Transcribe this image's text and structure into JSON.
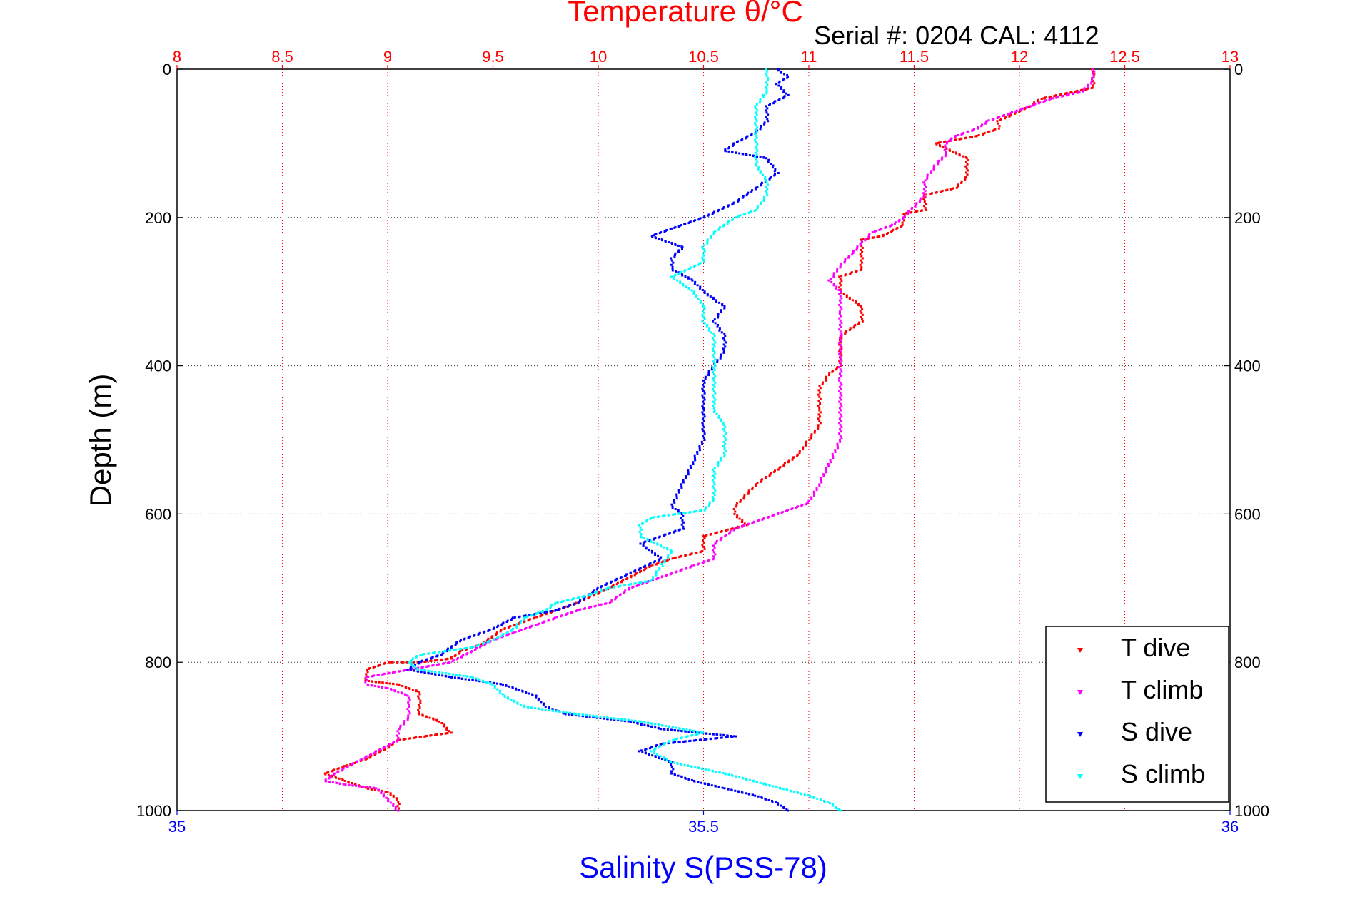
{
  "chart_data": {
    "type": "scatter",
    "title": "Temperature θ/°C",
    "subtitle": "Serial #: 0204  CAL: 4112",
    "xlabel_top": "Temperature θ/°C",
    "xlabel_bottom": "Salinity S(PSS-78)",
    "ylabel": "Depth (m)",
    "top_axis": {
      "range": [
        8,
        13
      ],
      "ticks": [
        "8",
        "8.5",
        "9",
        "9.5",
        "10",
        "10.5",
        "11",
        "11.5",
        "12",
        "12.5",
        "13"
      ],
      "color": "#ff0000"
    },
    "bottom_axis": {
      "range": [
        35,
        36
      ],
      "ticks": [
        "35",
        "35.5",
        "36"
      ],
      "color": "#0000ff"
    },
    "y_axis": {
      "range": [
        0,
        1000
      ],
      "reversed": true,
      "ticks": [
        "0",
        "200",
        "400",
        "600",
        "800",
        "1000"
      ]
    },
    "grid": true,
    "legend_position": "bottom-right",
    "series": [
      {
        "name": "T dive",
        "color": "#ff0000",
        "axis": "top",
        "points": [
          [
            12.35,
            0
          ],
          [
            12.35,
            10
          ],
          [
            12.35,
            25
          ],
          [
            12.1,
            40
          ],
          [
            12.05,
            50
          ],
          [
            11.9,
            70
          ],
          [
            11.9,
            80
          ],
          [
            11.8,
            90
          ],
          [
            11.6,
            100
          ],
          [
            11.75,
            120
          ],
          [
            11.75,
            145
          ],
          [
            11.7,
            160
          ],
          [
            11.55,
            170
          ],
          [
            11.55,
            190
          ],
          [
            11.45,
            195
          ],
          [
            11.45,
            210
          ],
          [
            11.35,
            225
          ],
          [
            11.25,
            230
          ],
          [
            11.25,
            255
          ],
          [
            11.25,
            270
          ],
          [
            11.15,
            280
          ],
          [
            11.15,
            300
          ],
          [
            11.25,
            320
          ],
          [
            11.25,
            340
          ],
          [
            11.15,
            360
          ],
          [
            11.15,
            380
          ],
          [
            11.15,
            400
          ],
          [
            11.1,
            410
          ],
          [
            11.05,
            430
          ],
          [
            11.05,
            460
          ],
          [
            11.05,
            480
          ],
          [
            11.0,
            500
          ],
          [
            10.95,
            520
          ],
          [
            10.85,
            540
          ],
          [
            10.75,
            560
          ],
          [
            10.7,
            575
          ],
          [
            10.65,
            590
          ],
          [
            10.65,
            600
          ],
          [
            10.7,
            615
          ],
          [
            10.5,
            630
          ],
          [
            10.5,
            650
          ],
          [
            10.35,
            660
          ],
          [
            10.25,
            670
          ],
          [
            10.15,
            685
          ],
          [
            10.05,
            700
          ],
          [
            9.9,
            720
          ],
          [
            9.8,
            730
          ],
          [
            9.7,
            740
          ],
          [
            9.55,
            755
          ],
          [
            9.45,
            775
          ],
          [
            9.35,
            785
          ],
          [
            9.3,
            795
          ],
          [
            9.15,
            800
          ],
          [
            9.0,
            800
          ],
          [
            8.9,
            810
          ],
          [
            8.9,
            825
          ],
          [
            9.05,
            830
          ],
          [
            9.15,
            840
          ],
          [
            9.15,
            855
          ],
          [
            9.15,
            870
          ],
          [
            9.25,
            880
          ],
          [
            9.3,
            895
          ],
          [
            9.05,
            905
          ],
          [
            9.0,
            915
          ],
          [
            8.9,
            930
          ],
          [
            8.8,
            940
          ],
          [
            8.7,
            950
          ],
          [
            8.8,
            960
          ],
          [
            8.9,
            970
          ],
          [
            9.0,
            975
          ],
          [
            9.05,
            985
          ],
          [
            9.05,
            1000
          ]
        ]
      },
      {
        "name": "T climb",
        "color": "#ff00ff",
        "axis": "top",
        "points": [
          [
            12.35,
            0
          ],
          [
            12.35,
            15
          ],
          [
            12.3,
            30
          ],
          [
            12.15,
            40
          ],
          [
            12.05,
            50
          ],
          [
            11.95,
            60
          ],
          [
            11.85,
            70
          ],
          [
            11.8,
            80
          ],
          [
            11.7,
            90
          ],
          [
            11.65,
            100
          ],
          [
            11.65,
            115
          ],
          [
            11.6,
            130
          ],
          [
            11.55,
            150
          ],
          [
            11.55,
            170
          ],
          [
            11.5,
            185
          ],
          [
            11.45,
            200
          ],
          [
            11.4,
            210
          ],
          [
            11.3,
            220
          ],
          [
            11.25,
            235
          ],
          [
            11.2,
            250
          ],
          [
            11.15,
            265
          ],
          [
            11.1,
            285
          ],
          [
            11.15,
            300
          ],
          [
            11.15,
            330
          ],
          [
            11.15,
            360
          ],
          [
            11.15,
            390
          ],
          [
            11.15,
            420
          ],
          [
            11.15,
            460
          ],
          [
            11.15,
            500
          ],
          [
            11.1,
            530
          ],
          [
            11.05,
            560
          ],
          [
            11.0,
            585
          ],
          [
            10.85,
            600
          ],
          [
            10.65,
            620
          ],
          [
            10.55,
            640
          ],
          [
            10.55,
            660
          ],
          [
            10.45,
            670
          ],
          [
            10.3,
            685
          ],
          [
            10.15,
            700
          ],
          [
            10.05,
            720
          ],
          [
            9.9,
            730
          ],
          [
            9.8,
            740
          ],
          [
            9.7,
            750
          ],
          [
            9.6,
            760
          ],
          [
            9.5,
            770
          ],
          [
            9.4,
            785
          ],
          [
            9.3,
            800
          ],
          [
            9.1,
            810
          ],
          [
            8.9,
            820
          ],
          [
            8.9,
            830
          ],
          [
            9.0,
            835
          ],
          [
            9.1,
            845
          ],
          [
            9.1,
            860
          ],
          [
            9.1,
            875
          ],
          [
            9.05,
            890
          ],
          [
            9.05,
            905
          ],
          [
            8.95,
            920
          ],
          [
            8.85,
            935
          ],
          [
            8.75,
            950
          ],
          [
            8.7,
            960
          ],
          [
            8.8,
            965
          ],
          [
            8.95,
            970
          ],
          [
            9.0,
            985
          ],
          [
            9.05,
            1000
          ]
        ]
      },
      {
        "name": "S dive",
        "color": "#0000ff",
        "axis": "bottom",
        "points": [
          [
            35.57,
            0
          ],
          [
            35.58,
            10
          ],
          [
            35.57,
            20
          ],
          [
            35.58,
            35
          ],
          [
            35.56,
            50
          ],
          [
            35.56,
            70
          ],
          [
            35.55,
            85
          ],
          [
            35.53,
            100
          ],
          [
            35.52,
            110
          ],
          [
            35.56,
            120
          ],
          [
            35.57,
            140
          ],
          [
            35.55,
            160
          ],
          [
            35.53,
            180
          ],
          [
            35.5,
            200
          ],
          [
            35.47,
            215
          ],
          [
            35.45,
            225
          ],
          [
            35.48,
            240
          ],
          [
            35.47,
            255
          ],
          [
            35.47,
            270
          ],
          [
            35.49,
            285
          ],
          [
            35.5,
            300
          ],
          [
            35.52,
            320
          ],
          [
            35.51,
            340
          ],
          [
            35.52,
            360
          ],
          [
            35.52,
            380
          ],
          [
            35.51,
            400
          ],
          [
            35.5,
            420
          ],
          [
            35.5,
            440
          ],
          [
            35.5,
            460
          ],
          [
            35.5,
            480
          ],
          [
            35.5,
            500
          ],
          [
            35.49,
            530
          ],
          [
            35.48,
            560
          ],
          [
            35.47,
            590
          ],
          [
            35.48,
            600
          ],
          [
            35.48,
            620
          ],
          [
            35.44,
            640
          ],
          [
            35.46,
            660
          ],
          [
            35.43,
            680
          ],
          [
            35.4,
            700
          ],
          [
            35.38,
            720
          ],
          [
            35.36,
            730
          ],
          [
            35.32,
            740
          ],
          [
            35.3,
            755
          ],
          [
            35.27,
            770
          ],
          [
            35.25,
            790
          ],
          [
            35.23,
            800
          ],
          [
            35.22,
            810
          ],
          [
            35.26,
            820
          ],
          [
            35.31,
            830
          ],
          [
            35.34,
            845
          ],
          [
            35.35,
            860
          ],
          [
            35.37,
            870
          ],
          [
            35.43,
            880
          ],
          [
            35.46,
            890
          ],
          [
            35.53,
            900
          ],
          [
            35.46,
            910
          ],
          [
            35.44,
            920
          ],
          [
            35.47,
            935
          ],
          [
            35.47,
            950
          ],
          [
            35.49,
            960
          ],
          [
            35.52,
            970
          ],
          [
            35.55,
            980
          ],
          [
            35.57,
            990
          ],
          [
            35.58,
            1000
          ]
        ]
      },
      {
        "name": "S climb",
        "color": "#00ffff",
        "axis": "bottom",
        "points": [
          [
            35.56,
            0
          ],
          [
            35.56,
            15
          ],
          [
            35.56,
            30
          ],
          [
            35.55,
            50
          ],
          [
            35.55,
            70
          ],
          [
            35.55,
            90
          ],
          [
            35.55,
            110
          ],
          [
            35.55,
            130
          ],
          [
            35.56,
            150
          ],
          [
            35.56,
            170
          ],
          [
            35.55,
            190
          ],
          [
            35.53,
            200
          ],
          [
            35.51,
            220
          ],
          [
            35.5,
            240
          ],
          [
            35.5,
            260
          ],
          [
            35.47,
            280
          ],
          [
            35.49,
            300
          ],
          [
            35.5,
            320
          ],
          [
            35.5,
            340
          ],
          [
            35.51,
            360
          ],
          [
            35.51,
            380
          ],
          [
            35.51,
            400
          ],
          [
            35.51,
            420
          ],
          [
            35.51,
            440
          ],
          [
            35.51,
            460
          ],
          [
            35.52,
            480
          ],
          [
            35.52,
            500
          ],
          [
            35.52,
            520
          ],
          [
            35.51,
            540
          ],
          [
            35.51,
            560
          ],
          [
            35.51,
            580
          ],
          [
            35.5,
            595
          ],
          [
            35.45,
            605
          ],
          [
            35.44,
            615
          ],
          [
            35.44,
            630
          ],
          [
            35.47,
            650
          ],
          [
            35.46,
            670
          ],
          [
            35.45,
            690
          ],
          [
            35.41,
            700
          ],
          [
            35.39,
            710
          ],
          [
            35.36,
            720
          ],
          [
            35.35,
            730
          ],
          [
            35.33,
            740
          ],
          [
            35.32,
            755
          ],
          [
            35.3,
            770
          ],
          [
            35.28,
            780
          ],
          [
            35.23,
            790
          ],
          [
            35.22,
            800
          ],
          [
            35.23,
            810
          ],
          [
            35.28,
            820
          ],
          [
            35.3,
            830
          ],
          [
            35.31,
            845
          ],
          [
            35.33,
            860
          ],
          [
            35.38,
            870
          ],
          [
            35.44,
            880
          ],
          [
            35.5,
            895
          ],
          [
            35.47,
            905
          ],
          [
            35.45,
            920
          ],
          [
            35.47,
            935
          ],
          [
            35.52,
            950
          ],
          [
            35.56,
            965
          ],
          [
            35.6,
            980
          ],
          [
            35.62,
            990
          ],
          [
            35.63,
            1000
          ]
        ]
      }
    ]
  }
}
